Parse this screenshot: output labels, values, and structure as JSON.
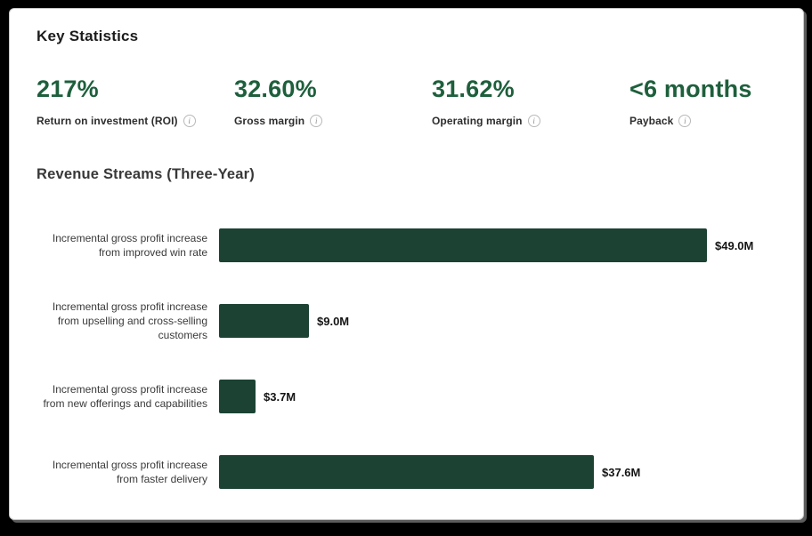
{
  "key_statistics": {
    "heading": "Key Statistics",
    "stats": [
      {
        "value": "217%",
        "label": "Return on investment (ROI)",
        "icon": "info-icon"
      },
      {
        "value": "32.60%",
        "label": "Gross margin",
        "icon": "info-icon"
      },
      {
        "value": "31.62%",
        "label": "Operating margin",
        "icon": "info-icon"
      },
      {
        "value": "<6 months",
        "label": "Payback",
        "icon": "info-icon"
      }
    ]
  },
  "chart_data": {
    "type": "bar",
    "orientation": "horizontal",
    "title": "Revenue Streams (Three-Year)",
    "categories": [
      "Incremental gross profit increase from improved win rate",
      "Incremental gross profit increase from upselling and cross-selling customers",
      "Incremental gross profit increase from new offerings and capabilities",
      "Incremental gross profit increase from faster delivery"
    ],
    "values": [
      49.0,
      9.0,
      3.7,
      37.6
    ],
    "value_labels": [
      "$49.0M",
      "$9.0M",
      "$3.7M",
      "$37.6M"
    ],
    "unit": "USD millions",
    "xlim": [
      0,
      49.0
    ],
    "grid": false,
    "legend": false,
    "bar_color": "#1c4234"
  },
  "colors": {
    "accent_green": "#1e5f3c",
    "bar_green": "#1c4234",
    "card_background": "#ffffff",
    "frame_background": "#000000"
  }
}
